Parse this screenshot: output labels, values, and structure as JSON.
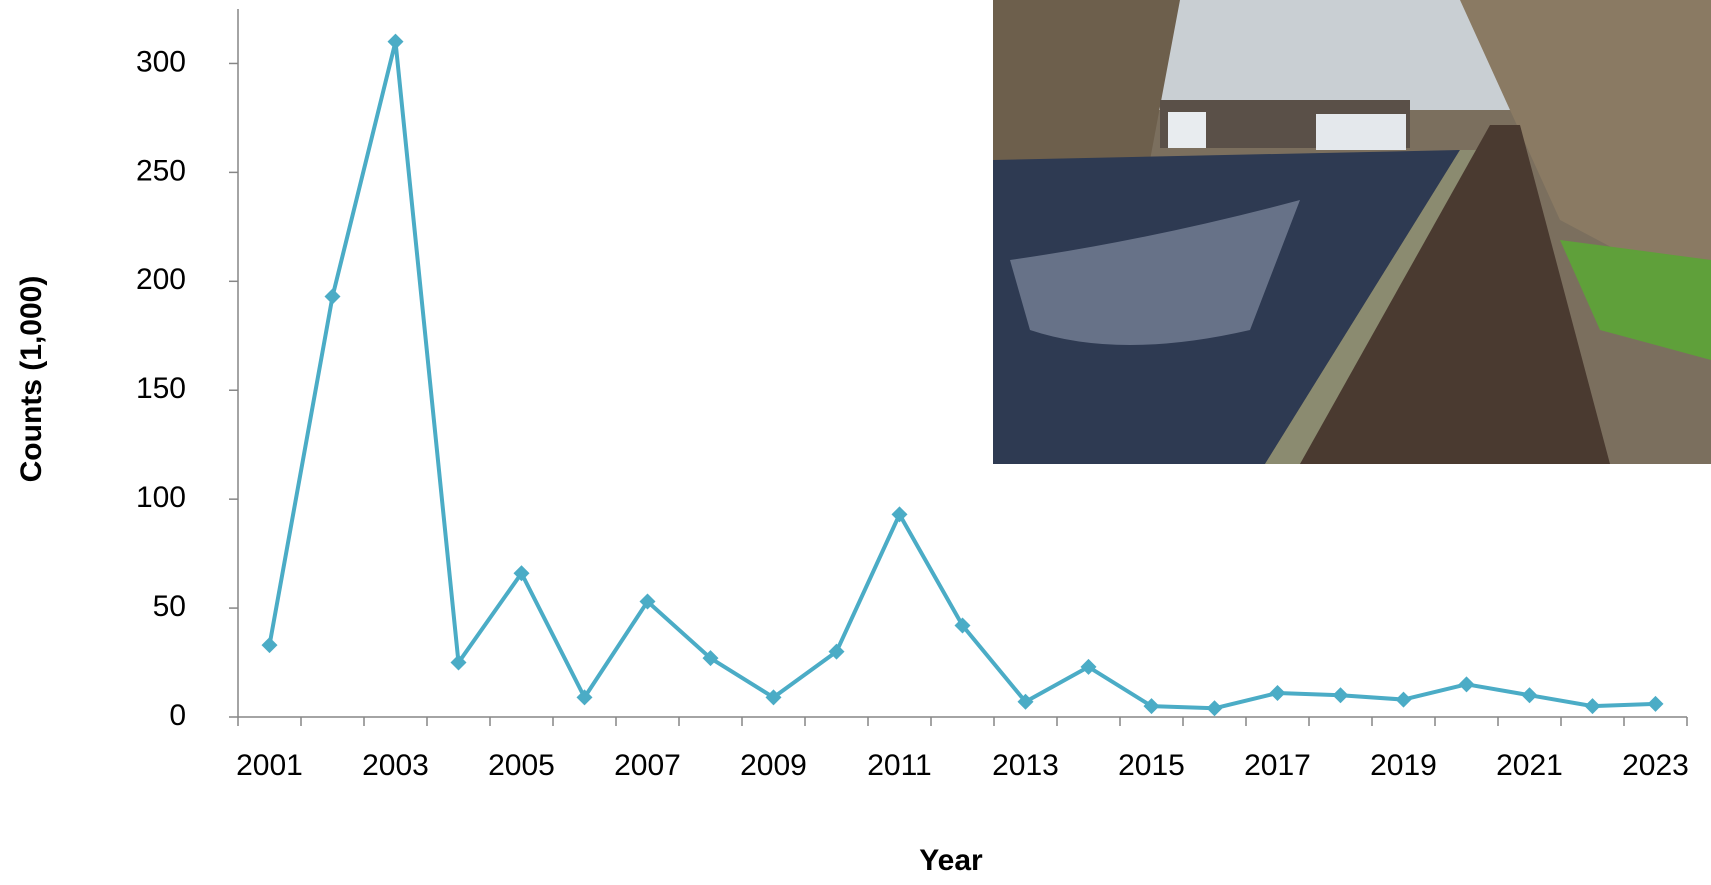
{
  "chart_data": {
    "type": "line",
    "y_label": "Counts (1,000)",
    "x_label": "Year",
    "categories": [
      "2001",
      null,
      "2003",
      null,
      "2005",
      null,
      "2007",
      null,
      "2009",
      null,
      "2011",
      null,
      "2013",
      null,
      "2015",
      null,
      "2017",
      null,
      "2019",
      null,
      "2021",
      null,
      "2023"
    ],
    "series": [
      {
        "name": "Counts",
        "color": "#4bacc6",
        "values": [
          33,
          193,
          310,
          25,
          66,
          9,
          53,
          27,
          9,
          30,
          93,
          42,
          7,
          23,
          5,
          4,
          11,
          10,
          8,
          15,
          10,
          5,
          6
        ]
      }
    ],
    "ylim": [
      0,
      325
    ],
    "yticks": [
      0,
      50,
      100,
      150,
      200,
      250,
      300
    ],
    "grid": false
  }
}
